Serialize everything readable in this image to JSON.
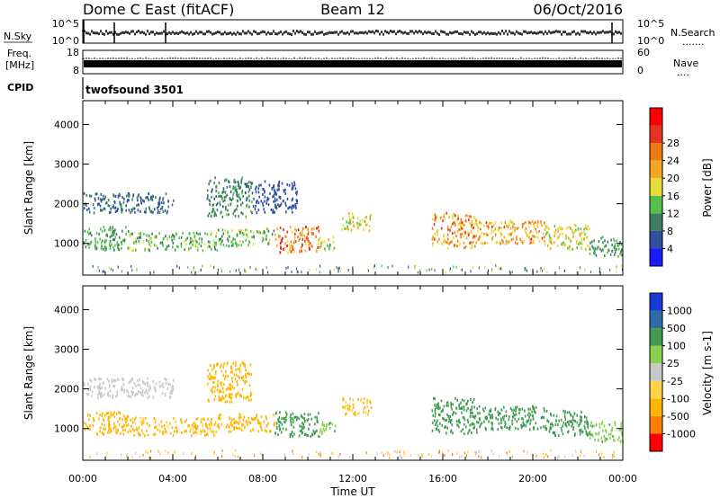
{
  "header": {
    "station": "Dome C East (fitACF)",
    "beam": "Beam 12",
    "date": "06/Oct/2016"
  },
  "nsky": {
    "left_label": "N.Sky",
    "left_ticks": [
      "10^5",
      "10^0"
    ],
    "right_label": "N.Search",
    "right_ticks": [
      "10^5",
      "10^0"
    ],
    "right_dots": "......."
  },
  "freq": {
    "left_label_1": "Freq.",
    "left_label_2": "[MHz]",
    "left_ticks": [
      "18",
      "8"
    ],
    "right_label": "Nave",
    "right_ticks": [
      "60",
      "0"
    ],
    "right_dots": "...."
  },
  "cpid": {
    "label": "CPID",
    "value": "twofsound 3501"
  },
  "x_axis": {
    "label": "Time UT",
    "ticks": [
      "00:00",
      "04:00",
      "08:00",
      "12:00",
      "16:00",
      "20:00",
      "00:00"
    ],
    "range_hours": [
      0,
      24
    ]
  },
  "colors": {
    "power": [
      "#1a1aff",
      "#2d4f9e",
      "#3d7f5f",
      "#53c04a",
      "#e6dc3a",
      "#f5a623",
      "#f07a12",
      "#e9321e",
      "#ff0000"
    ],
    "velocity": [
      "#ff0000",
      "#ff7f00",
      "#ffb600",
      "#ffd24a",
      "#c8c8c8",
      "#8ad04f",
      "#3e9b50",
      "#2d6ca8",
      "#1a3ad6"
    ]
  },
  "chart_data": [
    {
      "type": "heatmap",
      "name": "power",
      "ylabel": "Slant Range [km]",
      "ylim": [
        200,
        4600
      ],
      "yticks": [
        "1000",
        "2000",
        "3000",
        "4000"
      ],
      "ytick_values": [
        1000,
        2000,
        3000,
        4000
      ],
      "colorbar": {
        "label": "Power [dB]",
        "ticks": [
          "4",
          "8",
          "12",
          "16",
          "20",
          "24",
          "28"
        ],
        "range": [
          0,
          32
        ]
      },
      "regions": [
        {
          "t": [
            0.0,
            2.0
          ],
          "range": [
            850,
            1450
          ],
          "value": 12
        },
        {
          "t": [
            2.0,
            6.0
          ],
          "range": [
            850,
            1300
          ],
          "value": 14
        },
        {
          "t": [
            5.5,
            7.5
          ],
          "range": [
            1700,
            2700
          ],
          "value": 10
        },
        {
          "t": [
            6.0,
            8.5
          ],
          "range": [
            950,
            1400
          ],
          "value": 14
        },
        {
          "t": [
            8.5,
            10.5
          ],
          "range": [
            800,
            1450
          ],
          "value": 26
        },
        {
          "t": [
            10.5,
            11.2
          ],
          "range": [
            850,
            1200
          ],
          "value": 16
        },
        {
          "t": [
            11.5,
            12.8
          ],
          "range": [
            1350,
            1800
          ],
          "value": 18
        },
        {
          "t": [
            15.5,
            17.5
          ],
          "range": [
            900,
            1800
          ],
          "value": 24
        },
        {
          "t": [
            17.5,
            20.5
          ],
          "range": [
            1000,
            1600
          ],
          "value": 22
        },
        {
          "t": [
            20.5,
            22.5
          ],
          "range": [
            850,
            1500
          ],
          "value": 18
        },
        {
          "t": [
            22.5,
            24.0
          ],
          "range": [
            700,
            1200
          ],
          "value": 12
        },
        {
          "t": [
            0.0,
            4.0
          ],
          "range": [
            1800,
            2300
          ],
          "value": 8
        },
        {
          "t": [
            7.5,
            9.5
          ],
          "range": [
            1800,
            2600
          ],
          "value": 6
        }
      ]
    },
    {
      "type": "heatmap",
      "name": "velocity",
      "ylabel": "Slant Range [km]",
      "ylim": [
        200,
        4600
      ],
      "yticks": [
        "1000",
        "2000",
        "3000",
        "4000"
      ],
      "ytick_values": [
        1000,
        2000,
        3000,
        4000
      ],
      "colorbar": {
        "label": "Velocity [m s-1]",
        "ticks": [
          "-1000",
          "-500",
          "-100",
          "-25",
          "25",
          "100",
          "500",
          "1000"
        ]
      },
      "regions": [
        {
          "t": [
            0.0,
            2.0
          ],
          "range": [
            850,
            1450
          ],
          "value": -150
        },
        {
          "t": [
            2.0,
            6.0
          ],
          "range": [
            850,
            1300
          ],
          "value": -120
        },
        {
          "t": [
            5.5,
            7.5
          ],
          "range": [
            1700,
            2700
          ],
          "value": -300
        },
        {
          "t": [
            6.0,
            8.5
          ],
          "range": [
            950,
            1400
          ],
          "value": -200
        },
        {
          "t": [
            8.5,
            10.5
          ],
          "range": [
            800,
            1450
          ],
          "value": 150
        },
        {
          "t": [
            10.5,
            11.2
          ],
          "range": [
            850,
            1200
          ],
          "value": 80
        },
        {
          "t": [
            11.5,
            12.8
          ],
          "range": [
            1350,
            1800
          ],
          "value": -100
        },
        {
          "t": [
            15.5,
            17.5
          ],
          "range": [
            900,
            1800
          ],
          "value": 300
        },
        {
          "t": [
            17.5,
            20.5
          ],
          "range": [
            1000,
            1600
          ],
          "value": 250
        },
        {
          "t": [
            20.5,
            22.5
          ],
          "range": [
            850,
            1500
          ],
          "value": 150
        },
        {
          "t": [
            22.5,
            24.0
          ],
          "range": [
            700,
            1200
          ],
          "value": 80
        },
        {
          "t": [
            0.0,
            4.0
          ],
          "range": [
            1800,
            2300
          ],
          "value": 0
        }
      ]
    }
  ]
}
